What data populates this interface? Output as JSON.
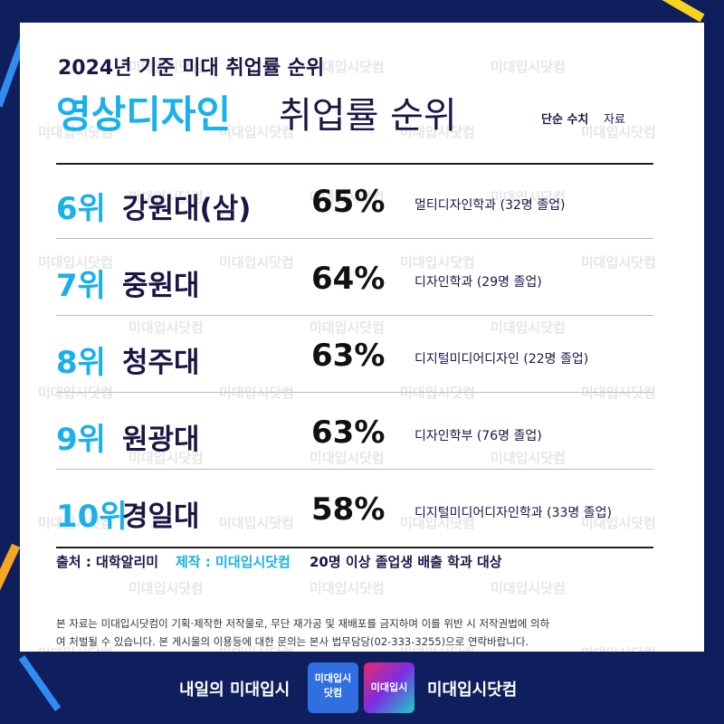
{
  "header": {
    "subtitle": "2024년 기준 미대 취업률 순위",
    "title_highlight": "영상디자인",
    "title_rest": "취업률 순위",
    "note_bold": "단순 수치",
    "note": "자료"
  },
  "table": {
    "rows": [
      {
        "rank": "6위",
        "school": "강원대(삼)",
        "rate": "65%",
        "department": "멀티디자인학과 (32명 졸업)"
      },
      {
        "rank": "7위",
        "school": "중원대",
        "rate": "64%",
        "department": "디자인학과 (29명 졸업)"
      },
      {
        "rank": "8위",
        "school": "청주대",
        "rate": "63%",
        "department": "디지털미디어디자인 (22명 졸업)"
      },
      {
        "rank": "9위",
        "school": "원광대",
        "rate": "63%",
        "department": "디자인학부 (76명 졸업)"
      },
      {
        "rank": "10위",
        "school": "경일대",
        "rate": "58%",
        "department": "디지털미디어디자인학과 (33명 졸업)"
      }
    ]
  },
  "source": {
    "origin": "출처 : 대학알리미",
    "maker": "제작 : 미대입시닷컴",
    "criteria": "20명 이상 졸업생 배출 학과 대상"
  },
  "disclaimer": [
    "본 자료는 미대입시닷컴이 기획·제작한 저작물로, 무단 재가공 및 재배포를 금지하며 이를 위반 시 저작권법에 의하",
    "여 처벌될 수 있습니다. 본 게시물의 이용등에 대한 문의는 본사 법무담당(02-333-3255)으로 연락바랍니다."
  ],
  "watermark": "미대입시닷컴",
  "footer": {
    "slogan": "내일의 미대입시",
    "logo1": [
      "미대입시",
      "닷컴"
    ],
    "logo2": "미대입시",
    "brand": "미대입시닷컴"
  }
}
